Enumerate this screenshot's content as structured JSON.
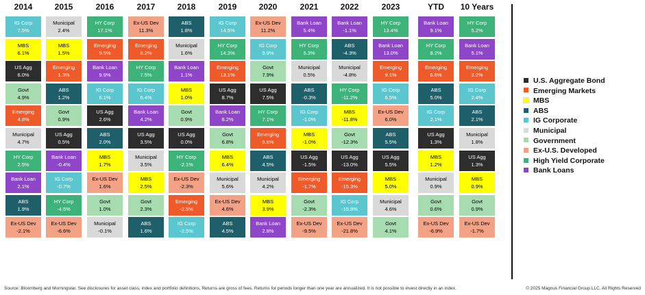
{
  "legend": [
    {
      "label": "U.S. Aggregate Bond",
      "short": "US Agg",
      "color": "#2d2d2d",
      "text": "#ffffff"
    },
    {
      "label": "Emerging Markets",
      "short": "Emerging",
      "color": "#ef5a2a",
      "text": "#ffffff"
    },
    {
      "label": "MBS",
      "short": "MBS",
      "color": "#ffff00",
      "text": "#000000"
    },
    {
      "label": "ABS",
      "short": "ABS",
      "color": "#1e5f6a",
      "text": "#ffffff"
    },
    {
      "label": "IG Corporate",
      "short": "IG Corp",
      "color": "#5cc6cf",
      "text": "#ffffff"
    },
    {
      "label": "Municipal",
      "short": "Municipal",
      "color": "#d9d9d9",
      "text": "#000000"
    },
    {
      "label": "Government",
      "short": "Govt",
      "color": "#a6dcb0",
      "text": "#000000"
    },
    {
      "label": "Ex-U.S. Developed",
      "short": "Ex-US Dev",
      "color": "#f4a285",
      "text": "#000000"
    },
    {
      "label": "High Yield Corporate",
      "short": "HY Corp",
      "color": "#3db37a",
      "text": "#ffffff"
    },
    {
      "label": "Bank Loans",
      "short": "Bank Loan",
      "color": "#8e45c8",
      "text": "#ffffff"
    }
  ],
  "columns": [
    {
      "header": "2014",
      "cells": [
        [
          "IG Corp",
          "7.5%"
        ],
        [
          "MBS",
          "6.1%"
        ],
        [
          "US Agg",
          "6.0%"
        ],
        [
          "Govt",
          "4.9%"
        ],
        [
          "Emerging",
          "4.8%"
        ],
        [
          "Municipal",
          "4.7%"
        ],
        [
          "HY Corp",
          "2.5%"
        ],
        [
          "Bank Loan",
          "2.1%"
        ],
        [
          "ABS",
          "1.9%"
        ],
        [
          "Ex-US Dev",
          "-2.1%"
        ]
      ]
    },
    {
      "header": "2015",
      "cells": [
        [
          "Municipal",
          "2.4%"
        ],
        [
          "MBS",
          "1.5%"
        ],
        [
          "Emerging",
          "1.3%"
        ],
        [
          "ABS",
          "1.2%"
        ],
        [
          "Govt",
          "0.9%"
        ],
        [
          "US Agg",
          "0.5%"
        ],
        [
          "Bank Loan",
          "-0.4%"
        ],
        [
          "IG Corp",
          "-0.7%"
        ],
        [
          "HY Corp",
          "-4.5%"
        ],
        [
          "Ex-US Dev",
          "-6.6%"
        ]
      ]
    },
    {
      "header": "2016",
      "cells": [
        [
          "HY Corp",
          "17.1%"
        ],
        [
          "Emerging",
          "9.9%"
        ],
        [
          "Bank Loan",
          "9.9%"
        ],
        [
          "IG Corp",
          "6.1%"
        ],
        [
          "US Agg",
          "2.6%"
        ],
        [
          "ABS",
          "2.0%"
        ],
        [
          "MBS",
          "1.7%"
        ],
        [
          "Ex-US Dev",
          "1.6%"
        ],
        [
          "Govt",
          "1.0%"
        ],
        [
          "Municipal",
          "-0.1%"
        ]
      ]
    },
    {
      "header": "2017",
      "cells": [
        [
          "Ex-US Dev",
          "11.3%"
        ],
        [
          "Emerging",
          "8.2%"
        ],
        [
          "HY Corp",
          "7.5%"
        ],
        [
          "IG Corp",
          "6.4%"
        ],
        [
          "Bank Loan",
          "4.2%"
        ],
        [
          "US Agg",
          "3.5%"
        ],
        [
          "Municipal",
          "3.5%"
        ],
        [
          "MBS",
          "2.5%"
        ],
        [
          "Govt",
          "2.3%"
        ],
        [
          "ABS",
          "1.6%"
        ]
      ]
    },
    {
      "header": "2018",
      "cells": [
        [
          "ABS",
          "1.8%"
        ],
        [
          "Municipal",
          "1.6%"
        ],
        [
          "Bank Loan",
          "1.1%"
        ],
        [
          "MBS",
          "1.0%"
        ],
        [
          "Govt",
          "0.9%"
        ],
        [
          "US Agg",
          "0.0%"
        ],
        [
          "HY Corp",
          "-2.1%"
        ],
        [
          "Ex-US Dev",
          "-2.3%"
        ],
        [
          "Emerging",
          "-2.5%"
        ],
        [
          "IG Corp",
          "-2.5%"
        ]
      ]
    },
    {
      "header": "2019",
      "cells": [
        [
          "IG Corp",
          "14.5%"
        ],
        [
          "HY Corp",
          "14.3%"
        ],
        [
          "Emerging",
          "13.1%"
        ],
        [
          "US Agg",
          "8.7%"
        ],
        [
          "Bank Loan",
          "8.2%"
        ],
        [
          "Govt",
          "6.8%"
        ],
        [
          "MBS",
          "6.4%"
        ],
        [
          "Municipal",
          "5.6%"
        ],
        [
          "Ex-US Dev",
          "4.6%"
        ],
        [
          "ABS",
          "4.5%"
        ]
      ]
    },
    {
      "header": "2020",
      "cells": [
        [
          "Ex-US Dev",
          "11.2%"
        ],
        [
          "IG Corp",
          "9.9%"
        ],
        [
          "Govt",
          "7.9%"
        ],
        [
          "US Agg",
          "7.5%"
        ],
        [
          "HY Corp",
          "7.1%"
        ],
        [
          "Emerging",
          "6.6%"
        ],
        [
          "ABS",
          "4.5%"
        ],
        [
          "Municipal",
          "4.2%"
        ],
        [
          "MBS",
          "3.9%"
        ],
        [
          "Bank Loan",
          "2.8%"
        ]
      ]
    },
    {
      "header": "2021",
      "cells": [
        [
          "Bank Loan",
          "5.4%"
        ],
        [
          "HY Corp",
          "5.3%"
        ],
        [
          "Municipal",
          "0.5%"
        ],
        [
          "ABS",
          "-0.3%"
        ],
        [
          "IG Corp",
          "-1.0%"
        ],
        [
          "MBS",
          "-1.0%"
        ],
        [
          "US Agg",
          "-1.5%"
        ],
        [
          "Emerging",
          "-1.7%"
        ],
        [
          "Govt",
          "-2.3%"
        ],
        [
          "Ex-US Dev",
          "-9.5%"
        ]
      ]
    },
    {
      "header": "2022",
      "cells": [
        [
          "Bank Loan",
          "-1.1%"
        ],
        [
          "ABS",
          "-4.3%"
        ],
        [
          "Municipal",
          "-4.8%"
        ],
        [
          "HY Corp",
          "-11.2%"
        ],
        [
          "MBS",
          "-11.8%"
        ],
        [
          "Govt",
          "-12.3%"
        ],
        [
          "US Agg",
          "-13.0%"
        ],
        [
          "Emerging",
          "-15.3%"
        ],
        [
          "IG Corp",
          "-15.8%"
        ],
        [
          "Ex-US Dev",
          "-21.8%"
        ]
      ]
    },
    {
      "header": "2023",
      "cells": [
        [
          "HY Corp",
          "13.4%"
        ],
        [
          "Bank Loan",
          "13.0%"
        ],
        [
          "Emerging",
          "9.1%"
        ],
        [
          "IG Corp",
          "8.5%"
        ],
        [
          "Ex-US Dev",
          "6.0%"
        ],
        [
          "ABS",
          "5.5%"
        ],
        [
          "US Agg",
          "5.5%"
        ],
        [
          "MBS",
          "5.0%"
        ],
        [
          "Municipal",
          "4.6%"
        ],
        [
          "Govt",
          "4.1%"
        ]
      ]
    },
    {
      "header": "YTD",
      "cells": [
        [
          "Bank Loan",
          "9.1%"
        ],
        [
          "HY Corp",
          "8.2%"
        ],
        [
          "Emerging",
          "6.6%"
        ],
        [
          "ABS",
          "5.0%"
        ],
        [
          "IG Corp",
          "2.1%"
        ],
        [
          "US Agg",
          "1.3%"
        ],
        [
          "MBS",
          "1.2%"
        ],
        [
          "Municipal",
          "0.9%"
        ],
        [
          "Govt",
          "0.6%"
        ],
        [
          "Ex-US Dev",
          "-6.9%"
        ]
      ]
    },
    {
      "header": "10 Years",
      "cells": [
        [
          "HY Corp",
          "5.2%"
        ],
        [
          "Bank Loan",
          "5.1%"
        ],
        [
          "Emerging",
          "3.2%"
        ],
        [
          "IG Corp",
          "2.4%"
        ],
        [
          "ABS",
          "2.1%"
        ],
        [
          "Municipal",
          "1.8%"
        ],
        [
          "US Agg",
          "1.3%"
        ],
        [
          "MBS",
          "0.9%"
        ],
        [
          "Govt",
          "0.9%"
        ],
        [
          "Ex-US Dev",
          "-1.7%"
        ]
      ]
    }
  ],
  "footer": {
    "source": "Source: Bloomberg and Morningstar. See disclosures for asset class, index and portfolio definitions. Returns are gross of fees. Returns for periods longer than one year are annualized. It is not possible to invest directly in an index.",
    "copyright": "© 2025 Magnus Financial Group LLC. All Rights Reserved"
  }
}
